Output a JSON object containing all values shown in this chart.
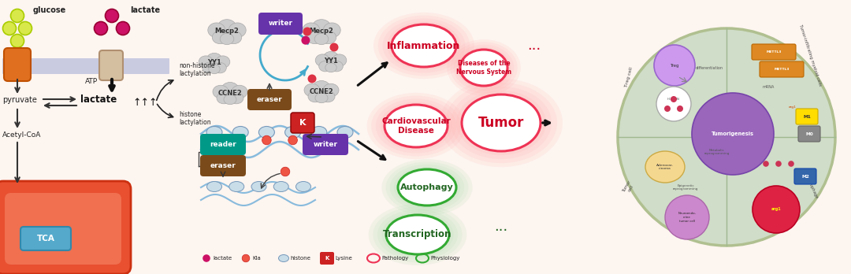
{
  "bg_color": "#fdf5f0",
  "membrane_color": "#b8bedd",
  "glucose_color": "#d8e84a",
  "lactate_color": "#cc1166",
  "writer_color": "#6633aa",
  "eraser_color": "#7a4a1a",
  "reader_color": "#009988",
  "k_color": "#cc2222",
  "cloud_color": "#c8c8c8",
  "pathology_edge": "#ee3355",
  "pathology_glow": "#ffaaaa",
  "physiology_edge": "#33aa33",
  "physiology_glow": "#aaddaa",
  "tumor_circle_bg": "#d0ddc8",
  "glucose_label": "glucose",
  "lactate_label": "lactate",
  "pyruvate_label": "pyruvate",
  "acetylcoa_label": "Acetyl-CoA",
  "tca_label": "TCA",
  "atp_label": "ATP",
  "non_histone_label": "non-histone\nlactylation",
  "histone_label": "histone\nlactylation",
  "writer_label": "writer",
  "eraser_label": "eraser",
  "reader_label": "reader",
  "k_label": "K",
  "inflammation_label": "Inflammation",
  "cardio_label": "Cardiovascular\nDisease",
  "nervous_label": "Diseases of the\nNervous System",
  "tumor_label": "Tumor",
  "autophagy_label": "Autophagy",
  "transcription_label": "Transcription",
  "tumorigenesis_label": "Tumorigenesis",
  "legend_lactate": "lactate",
  "legend_kla": "Kla",
  "legend_histone": "histone",
  "legend_lysine": "Lysine",
  "legend_pathology": "Pathology",
  "legend_physiology": "Physiology"
}
